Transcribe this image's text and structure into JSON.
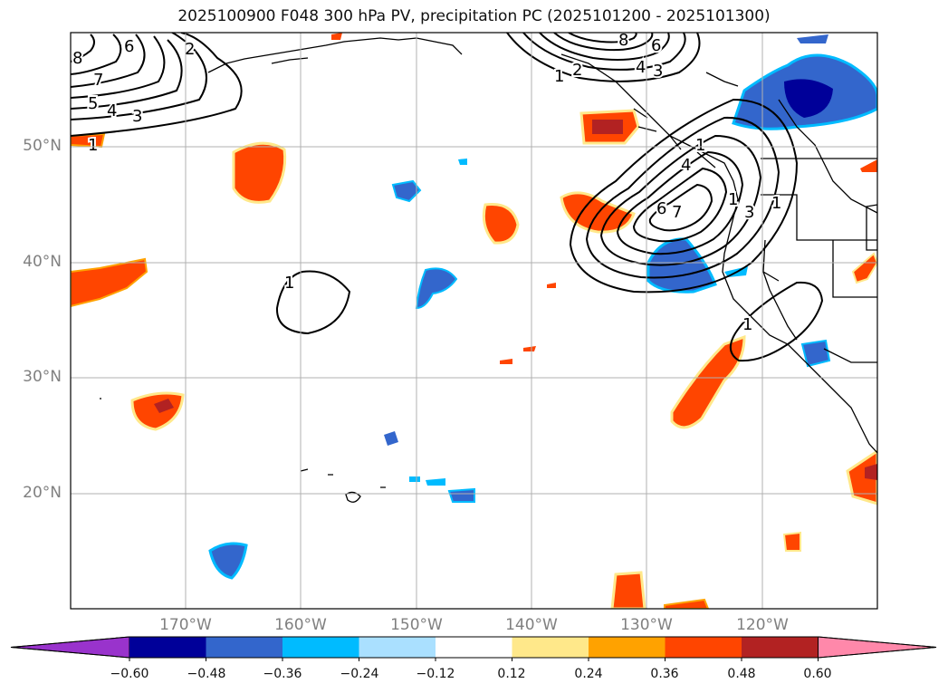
{
  "title": "2025100900 F048 300 hPa PV, precipitation PC (2025101200 - 2025101300)",
  "map": {
    "lat_labels": [
      "50°N",
      "40°N",
      "30°N",
      "20°N"
    ],
    "lon_labels": [
      "170°W",
      "160°W",
      "150°W",
      "140°W",
      "130°W",
      "120°W"
    ],
    "lat_range": [
      10,
      60
    ],
    "lon_range": [
      -180,
      -110
    ]
  },
  "contours": {
    "labels": {
      "nw_8": "8",
      "nw_7": "7",
      "nw_6": "6",
      "nw_5": "5",
      "nw_4": "4",
      "nw_3": "3",
      "nw_2": "2",
      "nw_1": "1",
      "n_8": "8",
      "n_6": "6",
      "n_4": "4",
      "n_3": "3",
      "n_2": "2",
      "n_1": "1",
      "c_1": "1",
      "e_6": "6",
      "e_7": "7",
      "e_4": "4",
      "e_3": "3",
      "e_1a": "1",
      "e_1b": "1",
      "e_1c": "1",
      "se_1": "1"
    }
  },
  "colorbar": {
    "ticks": [
      "−0.60",
      "−0.48",
      "−0.36",
      "−0.24",
      "−0.12",
      "0.12",
      "0.24",
      "0.36",
      "0.48",
      "0.60"
    ],
    "colors": [
      "#9933cc",
      "#000099",
      "#3366cc",
      "#00bbff",
      "#aae0ff",
      "#ffffff",
      "#ffe88a",
      "#ffa200",
      "#ff4500",
      "#b22222",
      "#ff88aa"
    ]
  }
}
